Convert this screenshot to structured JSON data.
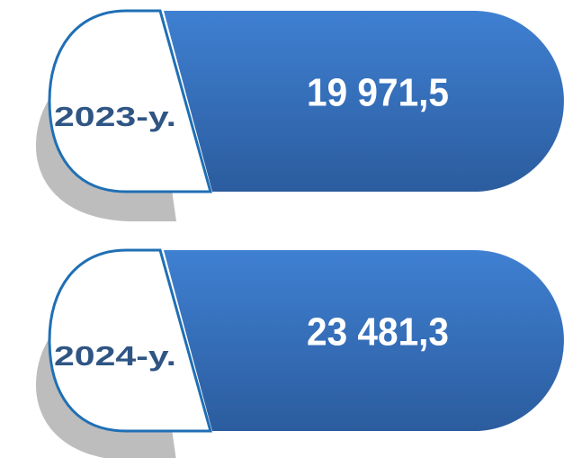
{
  "items": [
    {
      "label": "2023-y.",
      "value": "19 971,5"
    },
    {
      "label": "2024-y.",
      "value": "23 481,3"
    }
  ]
}
